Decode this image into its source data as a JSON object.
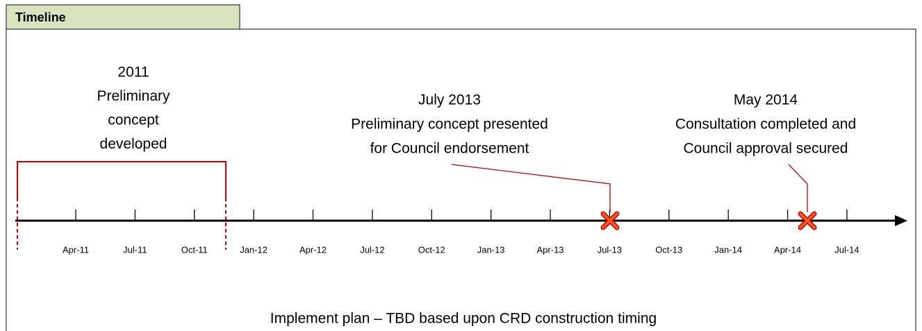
{
  "header": {
    "title": "Timeline"
  },
  "axis": {
    "ticks": [
      "Apr-11",
      "Jul-11",
      "Oct-11",
      "Jan-12",
      "Apr-12",
      "Jul-12",
      "Oct-12",
      "Jan-13",
      "Apr-13",
      "Jul-13",
      "Oct-13",
      "Jan-14",
      "Apr-14",
      "Jul-14"
    ]
  },
  "period": {
    "lines": [
      "2011",
      "Preliminary",
      "concept",
      "developed"
    ]
  },
  "milestones": [
    {
      "lines": [
        "July 2013",
        "Preliminary concept presented",
        "for Council endorsement"
      ]
    },
    {
      "lines": [
        "May 2014",
        "Consultation completed and",
        "Council approval secured"
      ]
    }
  ],
  "footer": {
    "text": "Implement plan – TBD based upon CRD construction timing"
  }
}
